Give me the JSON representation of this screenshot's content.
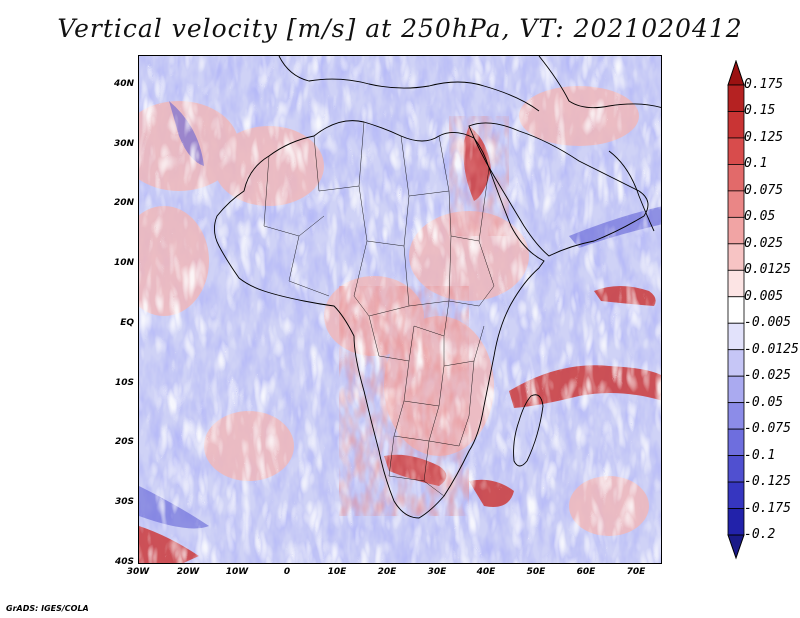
{
  "title": "Vertical velocity [m/s] at 250hPa, VT: 2021020412",
  "credit": "GrADS: IGES/COLA",
  "latitude_labels": [
    "40N",
    "30N",
    "20N",
    "10N",
    "EQ",
    "10S",
    "20S",
    "30S",
    "40S"
  ],
  "longitude_labels": [
    "30W",
    "20W",
    "10W",
    "0",
    "10E",
    "20E",
    "30E",
    "40E",
    "50E",
    "60E",
    "70E"
  ],
  "colorbar": {
    "levels": [
      "0.175",
      "0.15",
      "0.125",
      "0.1",
      "0.075",
      "0.05",
      "0.025",
      "0.0125",
      "0.005",
      "-0.005",
      "-0.0125",
      "-0.025",
      "-0.05",
      "-0.075",
      "-0.1",
      "-0.125",
      "-0.175",
      "-0.2"
    ],
    "colors": [
      "#9b1111",
      "#b52222",
      "#c93434",
      "#d84c4c",
      "#e26a6a",
      "#ea8686",
      "#f1a4a4",
      "#f7c4c4",
      "#fce4e4",
      "#ffffff",
      "#e2e2fb",
      "#c6c6f6",
      "#aaaaf0",
      "#8c8ce8",
      "#6e6ede",
      "#5050d0",
      "#3636c0",
      "#2222aa",
      "#1a1a88"
    ]
  },
  "colors": {
    "upward": "#d84c4c",
    "downward": "#6e6ede",
    "background_field": "#d8dbf7",
    "coastline": "#000000"
  }
}
